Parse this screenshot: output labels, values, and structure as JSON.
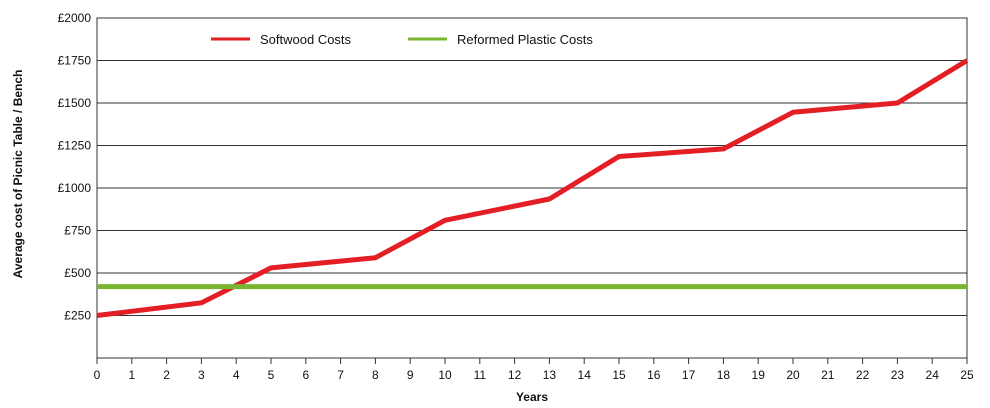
{
  "chart_data": {
    "type": "line",
    "title": "",
    "xlabel": "Years",
    "ylabel": "Average cost of Picnic Table / Bench",
    "x": [
      0,
      3,
      5,
      8,
      10,
      13,
      15,
      18,
      20,
      23,
      25
    ],
    "series": [
      {
        "name": "Softwood Costs",
        "color": "#e31e24",
        "values": [
          250,
          325,
          530,
          590,
          810,
          935,
          1185,
          1230,
          1445,
          1500,
          1750
        ]
      },
      {
        "name": "Reformed Plastic Costs",
        "color": "#7ab531",
        "values": [
          420,
          420,
          420,
          420,
          420,
          420,
          420,
          420,
          420,
          420,
          420
        ]
      }
    ],
    "xlim": [
      0,
      25
    ],
    "ylim": [
      0,
      2000
    ],
    "x_ticks": [
      0,
      1,
      2,
      3,
      4,
      5,
      6,
      7,
      8,
      9,
      10,
      11,
      12,
      13,
      14,
      15,
      16,
      17,
      18,
      19,
      20,
      21,
      22,
      23,
      24,
      25
    ],
    "y_ticks": [
      250,
      500,
      750,
      1000,
      1250,
      1500,
      1750,
      2000
    ],
    "y_tick_labels": [
      "£250",
      "£500",
      "£750",
      "£1000",
      "£1250",
      "£1500",
      "£1750",
      "£2000"
    ],
    "grid": "horizontal",
    "legend_position": "top-left"
  }
}
